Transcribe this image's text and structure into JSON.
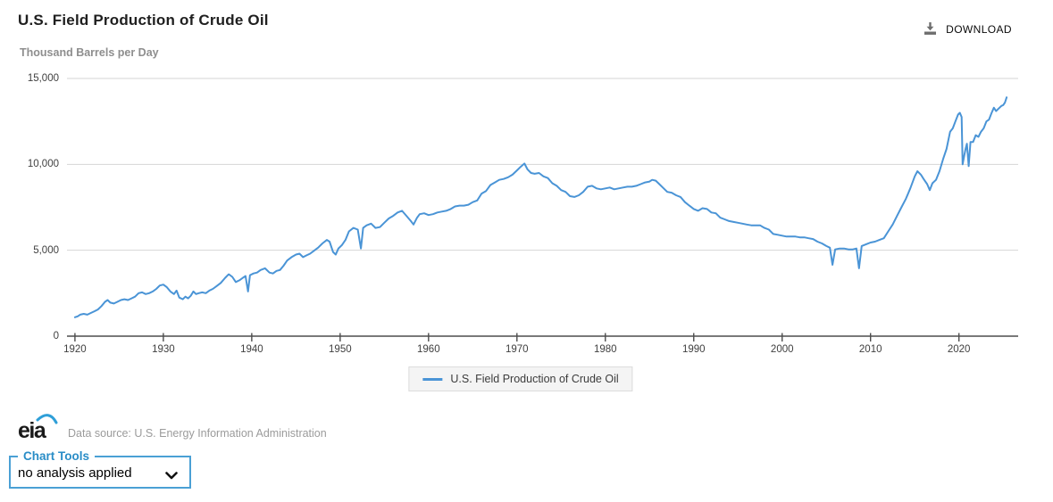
{
  "header": {
    "title": "U.S. Field Production of Crude Oil",
    "download_label": "DOWNLOAD"
  },
  "chart": {
    "unit_label": "Thousand Barrels per Day"
  },
  "legend": {
    "label": "U.S. Field Production of Crude Oil"
  },
  "footer": {
    "logo_text": "eia",
    "data_source": "Data source: U.S. Energy Information Administration"
  },
  "chart_tools": {
    "label": "Chart Tools",
    "selected_option": "no analysis applied"
  },
  "colors": {
    "line": "#4a94d6",
    "gridline": "#d6d6d6",
    "axis": "#4d4d4d",
    "tools_border": "#4aa0d5",
    "tools_text": "#2a8dc7",
    "eia_swoosh": "#2f9fd8"
  },
  "chart_data": {
    "type": "line",
    "title": "U.S. Field Production of Crude Oil",
    "ylabel": "Thousand Barrels per Day",
    "xlabel": "",
    "xlim": [
      1919.1,
      2026.7
    ],
    "ylim": [
      0,
      15000
    ],
    "grid": true,
    "legend_position": "bottom",
    "x_ticks": [
      1920,
      1930,
      1940,
      1950,
      1960,
      1970,
      1980,
      1990,
      2000,
      2010,
      2020
    ],
    "y_ticks": [
      {
        "v": 0,
        "label": "0"
      },
      {
        "v": 5000,
        "label": "5,000"
      },
      {
        "v": 10000,
        "label": "10,000"
      },
      {
        "v": 15000,
        "label": "15,000"
      }
    ],
    "series": [
      {
        "name": "U.S. Field Production of Crude Oil",
        "points": [
          [
            1920.0,
            1100
          ],
          [
            1920.3,
            1150
          ],
          [
            1920.6,
            1250
          ],
          [
            1921.0,
            1300
          ],
          [
            1921.4,
            1250
          ],
          [
            1921.8,
            1350
          ],
          [
            1922.2,
            1450
          ],
          [
            1922.6,
            1550
          ],
          [
            1923.0,
            1750
          ],
          [
            1923.4,
            2000
          ],
          [
            1923.7,
            2100
          ],
          [
            1924.0,
            1950
          ],
          [
            1924.4,
            1900
          ],
          [
            1924.8,
            2000
          ],
          [
            1925.2,
            2100
          ],
          [
            1925.6,
            2150
          ],
          [
            1926.0,
            2100
          ],
          [
            1926.4,
            2200
          ],
          [
            1926.8,
            2300
          ],
          [
            1927.2,
            2500
          ],
          [
            1927.6,
            2550
          ],
          [
            1928.0,
            2450
          ],
          [
            1928.4,
            2500
          ],
          [
            1928.8,
            2600
          ],
          [
            1929.2,
            2750
          ],
          [
            1929.6,
            2950
          ],
          [
            1930.0,
            3000
          ],
          [
            1930.4,
            2850
          ],
          [
            1930.8,
            2600
          ],
          [
            1931.2,
            2450
          ],
          [
            1931.5,
            2650
          ],
          [
            1931.8,
            2250
          ],
          [
            1932.2,
            2150
          ],
          [
            1932.5,
            2300
          ],
          [
            1932.8,
            2200
          ],
          [
            1933.1,
            2350
          ],
          [
            1933.4,
            2600
          ],
          [
            1933.7,
            2450
          ],
          [
            1934.0,
            2500
          ],
          [
            1934.4,
            2550
          ],
          [
            1934.8,
            2500
          ],
          [
            1935.2,
            2650
          ],
          [
            1935.6,
            2750
          ],
          [
            1936.0,
            2900
          ],
          [
            1936.5,
            3100
          ],
          [
            1937.0,
            3400
          ],
          [
            1937.4,
            3600
          ],
          [
            1937.8,
            3450
          ],
          [
            1938.2,
            3150
          ],
          [
            1938.6,
            3250
          ],
          [
            1939.0,
            3400
          ],
          [
            1939.3,
            3500
          ],
          [
            1939.58,
            2600
          ],
          [
            1939.8,
            3550
          ],
          [
            1940.2,
            3650
          ],
          [
            1940.6,
            3700
          ],
          [
            1941.0,
            3850
          ],
          [
            1941.5,
            3950
          ],
          [
            1942.0,
            3700
          ],
          [
            1942.4,
            3650
          ],
          [
            1942.8,
            3800
          ],
          [
            1943.2,
            3850
          ],
          [
            1943.6,
            4100
          ],
          [
            1944.0,
            4400
          ],
          [
            1944.5,
            4600
          ],
          [
            1945.0,
            4750
          ],
          [
            1945.4,
            4800
          ],
          [
            1945.8,
            4600
          ],
          [
            1946.2,
            4700
          ],
          [
            1946.6,
            4800
          ],
          [
            1947.0,
            4950
          ],
          [
            1947.5,
            5150
          ],
          [
            1948.0,
            5400
          ],
          [
            1948.5,
            5600
          ],
          [
            1948.8,
            5500
          ],
          [
            1949.2,
            4900
          ],
          [
            1949.5,
            4750
          ],
          [
            1949.8,
            5100
          ],
          [
            1950.2,
            5300
          ],
          [
            1950.6,
            5600
          ],
          [
            1951.0,
            6100
          ],
          [
            1951.5,
            6300
          ],
          [
            1952.0,
            6200
          ],
          [
            1952.35,
            5100
          ],
          [
            1952.6,
            6300
          ],
          [
            1953.0,
            6450
          ],
          [
            1953.5,
            6550
          ],
          [
            1954.0,
            6300
          ],
          [
            1954.5,
            6350
          ],
          [
            1955.0,
            6600
          ],
          [
            1955.5,
            6850
          ],
          [
            1956.0,
            7000
          ],
          [
            1956.5,
            7200
          ],
          [
            1957.0,
            7300
          ],
          [
            1957.5,
            7000
          ],
          [
            1958.0,
            6700
          ],
          [
            1958.3,
            6500
          ],
          [
            1958.7,
            6900
          ],
          [
            1959.0,
            7100
          ],
          [
            1959.5,
            7150
          ],
          [
            1960.0,
            7050
          ],
          [
            1960.5,
            7100
          ],
          [
            1961.0,
            7200
          ],
          [
            1961.5,
            7250
          ],
          [
            1962.0,
            7300
          ],
          [
            1962.5,
            7400
          ],
          [
            1963.0,
            7550
          ],
          [
            1963.5,
            7600
          ],
          [
            1964.0,
            7600
          ],
          [
            1964.5,
            7650
          ],
          [
            1965.0,
            7800
          ],
          [
            1965.5,
            7900
          ],
          [
            1966.0,
            8300
          ],
          [
            1966.5,
            8450
          ],
          [
            1967.0,
            8800
          ],
          [
            1967.5,
            8950
          ],
          [
            1968.0,
            9100
          ],
          [
            1968.5,
            9150
          ],
          [
            1969.0,
            9250
          ],
          [
            1969.5,
            9400
          ],
          [
            1970.0,
            9650
          ],
          [
            1970.4,
            9850
          ],
          [
            1970.85,
            10050
          ],
          [
            1971.2,
            9700
          ],
          [
            1971.6,
            9500
          ],
          [
            1972.0,
            9450
          ],
          [
            1972.5,
            9500
          ],
          [
            1973.0,
            9300
          ],
          [
            1973.5,
            9200
          ],
          [
            1974.0,
            8900
          ],
          [
            1974.5,
            8750
          ],
          [
            1975.0,
            8500
          ],
          [
            1975.5,
            8400
          ],
          [
            1976.0,
            8150
          ],
          [
            1976.5,
            8100
          ],
          [
            1977.0,
            8200
          ],
          [
            1977.5,
            8400
          ],
          [
            1978.0,
            8700
          ],
          [
            1978.5,
            8750
          ],
          [
            1979.0,
            8600
          ],
          [
            1979.5,
            8550
          ],
          [
            1980.0,
            8600
          ],
          [
            1980.5,
            8650
          ],
          [
            1981.0,
            8550
          ],
          [
            1981.5,
            8600
          ],
          [
            1982.0,
            8650
          ],
          [
            1982.5,
            8700
          ],
          [
            1983.0,
            8700
          ],
          [
            1983.5,
            8750
          ],
          [
            1984.0,
            8850
          ],
          [
            1984.5,
            8950
          ],
          [
            1985.0,
            9000
          ],
          [
            1985.3,
            9100
          ],
          [
            1985.7,
            9050
          ],
          [
            1986.0,
            8900
          ],
          [
            1986.5,
            8650
          ],
          [
            1987.0,
            8400
          ],
          [
            1987.5,
            8350
          ],
          [
            1988.0,
            8200
          ],
          [
            1988.5,
            8100
          ],
          [
            1989.0,
            7800
          ],
          [
            1989.5,
            7600
          ],
          [
            1990.0,
            7400
          ],
          [
            1990.5,
            7300
          ],
          [
            1991.0,
            7450
          ],
          [
            1991.5,
            7400
          ],
          [
            1992.0,
            7200
          ],
          [
            1992.5,
            7150
          ],
          [
            1993.0,
            6900
          ],
          [
            1993.5,
            6800
          ],
          [
            1994.0,
            6700
          ],
          [
            1994.5,
            6650
          ],
          [
            1995.0,
            6600
          ],
          [
            1995.5,
            6550
          ],
          [
            1996.0,
            6500
          ],
          [
            1996.5,
            6450
          ],
          [
            1997.0,
            6450
          ],
          [
            1997.5,
            6450
          ],
          [
            1998.0,
            6300
          ],
          [
            1998.5,
            6200
          ],
          [
            1999.0,
            5950
          ],
          [
            1999.5,
            5900
          ],
          [
            2000.0,
            5850
          ],
          [
            2000.5,
            5800
          ],
          [
            2001.0,
            5800
          ],
          [
            2001.5,
            5800
          ],
          [
            2002.0,
            5750
          ],
          [
            2002.5,
            5750
          ],
          [
            2003.0,
            5700
          ],
          [
            2003.5,
            5650
          ],
          [
            2004.0,
            5500
          ],
          [
            2004.5,
            5400
          ],
          [
            2005.0,
            5250
          ],
          [
            2005.4,
            5150
          ],
          [
            2005.7,
            4150
          ],
          [
            2006.0,
            5050
          ],
          [
            2006.5,
            5100
          ],
          [
            2007.0,
            5100
          ],
          [
            2007.5,
            5050
          ],
          [
            2008.0,
            5050
          ],
          [
            2008.4,
            5100
          ],
          [
            2008.7,
            3950
          ],
          [
            2009.0,
            5250
          ],
          [
            2009.5,
            5350
          ],
          [
            2010.0,
            5450
          ],
          [
            2010.5,
            5500
          ],
          [
            2011.0,
            5600
          ],
          [
            2011.5,
            5700
          ],
          [
            2012.0,
            6100
          ],
          [
            2012.5,
            6500
          ],
          [
            2013.0,
            7000
          ],
          [
            2013.5,
            7500
          ],
          [
            2014.0,
            8000
          ],
          [
            2014.5,
            8600
          ],
          [
            2015.0,
            9300
          ],
          [
            2015.3,
            9600
          ],
          [
            2015.7,
            9400
          ],
          [
            2016.0,
            9150
          ],
          [
            2016.4,
            8850
          ],
          [
            2016.7,
            8500
          ],
          [
            2017.0,
            8900
          ],
          [
            2017.4,
            9100
          ],
          [
            2017.8,
            9600
          ],
          [
            2018.2,
            10300
          ],
          [
            2018.6,
            10900
          ],
          [
            2019.0,
            11900
          ],
          [
            2019.3,
            12100
          ],
          [
            2019.6,
            12500
          ],
          [
            2019.9,
            12900
          ],
          [
            2020.1,
            13000
          ],
          [
            2020.3,
            12750
          ],
          [
            2020.42,
            10000
          ],
          [
            2020.6,
            10500
          ],
          [
            2020.75,
            10900
          ],
          [
            2020.9,
            11200
          ],
          [
            2021.1,
            9900
          ],
          [
            2021.3,
            11300
          ],
          [
            2021.6,
            11300
          ],
          [
            2021.9,
            11700
          ],
          [
            2022.2,
            11600
          ],
          [
            2022.5,
            11900
          ],
          [
            2022.8,
            12100
          ],
          [
            2023.1,
            12500
          ],
          [
            2023.4,
            12600
          ],
          [
            2023.7,
            13000
          ],
          [
            2023.95,
            13300
          ],
          [
            2024.2,
            13100
          ],
          [
            2024.5,
            13250
          ],
          [
            2024.8,
            13400
          ],
          [
            2025.0,
            13450
          ],
          [
            2025.2,
            13600
          ],
          [
            2025.4,
            13900
          ]
        ]
      }
    ]
  }
}
